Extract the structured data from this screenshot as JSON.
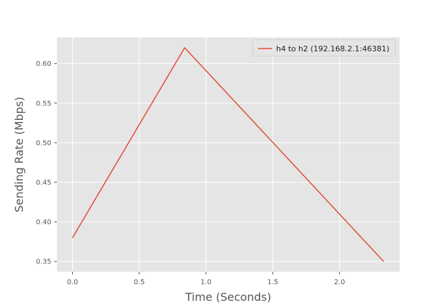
{
  "chart_data": {
    "type": "line",
    "title": "",
    "xlabel": "Time (Seconds)",
    "ylabel": "Sending Rate (Mbps)",
    "xlim": [
      -0.117,
      2.45
    ],
    "ylim": [
      0.337,
      0.633
    ],
    "xticks": [
      0.0,
      0.5,
      1.0,
      1.5,
      2.0
    ],
    "xtick_labels": [
      "0.0",
      "0.5",
      "1.0",
      "1.5",
      "2.0"
    ],
    "yticks": [
      0.35,
      0.4,
      0.45,
      0.5,
      0.55,
      0.6
    ],
    "ytick_labels": [
      "0.35",
      "0.40",
      "0.45",
      "0.50",
      "0.55",
      "0.60"
    ],
    "grid": true,
    "legend_position": "top-right",
    "series": [
      {
        "name": "h4 to h2 (192.168.2.1:46381)",
        "color": "#E24A33",
        "x": [
          0.0,
          0.84,
          2.33
        ],
        "y": [
          0.38,
          0.62,
          0.35
        ]
      }
    ]
  },
  "colors": {
    "plot_background": "#E5E5E5",
    "grid": "#FFFFFF",
    "figure_background": "#FFFFFF"
  }
}
